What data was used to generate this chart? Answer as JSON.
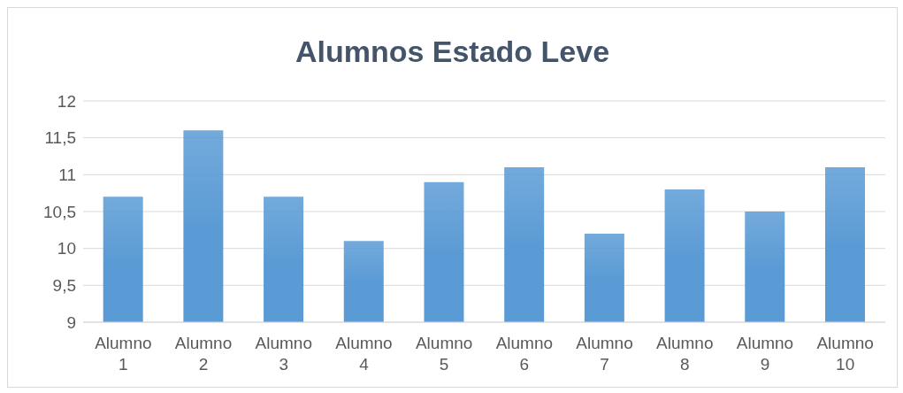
{
  "chart_data": {
    "type": "bar",
    "title": "Alumnos Estado Leve",
    "categories": [
      "Alumno 1",
      "Alumno 2",
      "Alumno 3",
      "Alumno 4",
      "Alumno 5",
      "Alumno 6",
      "Alumno 7",
      "Alumno 8",
      "Alumno 9",
      "Alumno 10"
    ],
    "values": [
      10.7,
      11.6,
      10.7,
      10.1,
      10.9,
      11.1,
      10.2,
      10.8,
      10.5,
      11.1
    ],
    "color": "#5b9bd5",
    "ylim": [
      9,
      12
    ],
    "yticks": [
      9,
      {
        "value": 9.5,
        "label": "9,5"
      },
      10,
      {
        "value": 10.5,
        "label": "10,5"
      },
      11,
      {
        "value": 11.5,
        "label": "11,5"
      },
      12
    ],
    "grid": "y"
  }
}
